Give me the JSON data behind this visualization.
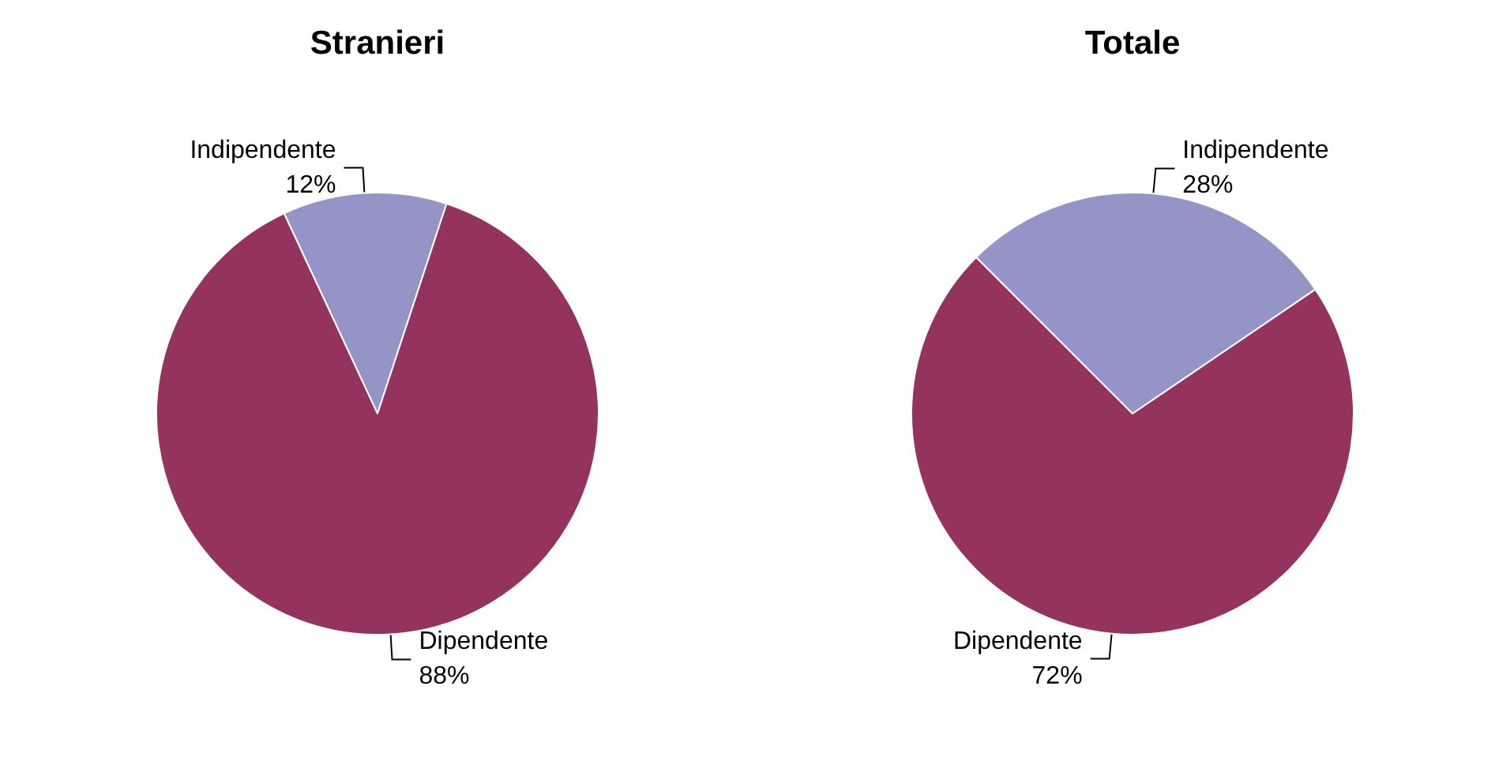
{
  "chart_data": [
    {
      "type": "pie",
      "title": "Stranieri",
      "categories": [
        "Indipendente",
        "Dipendente"
      ],
      "values": [
        12,
        88
      ],
      "value_labels": [
        "12%",
        "88%"
      ],
      "colors": [
        "#9494c6",
        "#93335e"
      ],
      "legend": false
    },
    {
      "type": "pie",
      "title": "Totale",
      "categories": [
        "Indipendente",
        "Dipendente"
      ],
      "values": [
        28,
        72
      ],
      "value_labels": [
        "28%",
        "72%"
      ],
      "colors": [
        "#9494c6",
        "#93335e"
      ],
      "legend": false
    }
  ]
}
